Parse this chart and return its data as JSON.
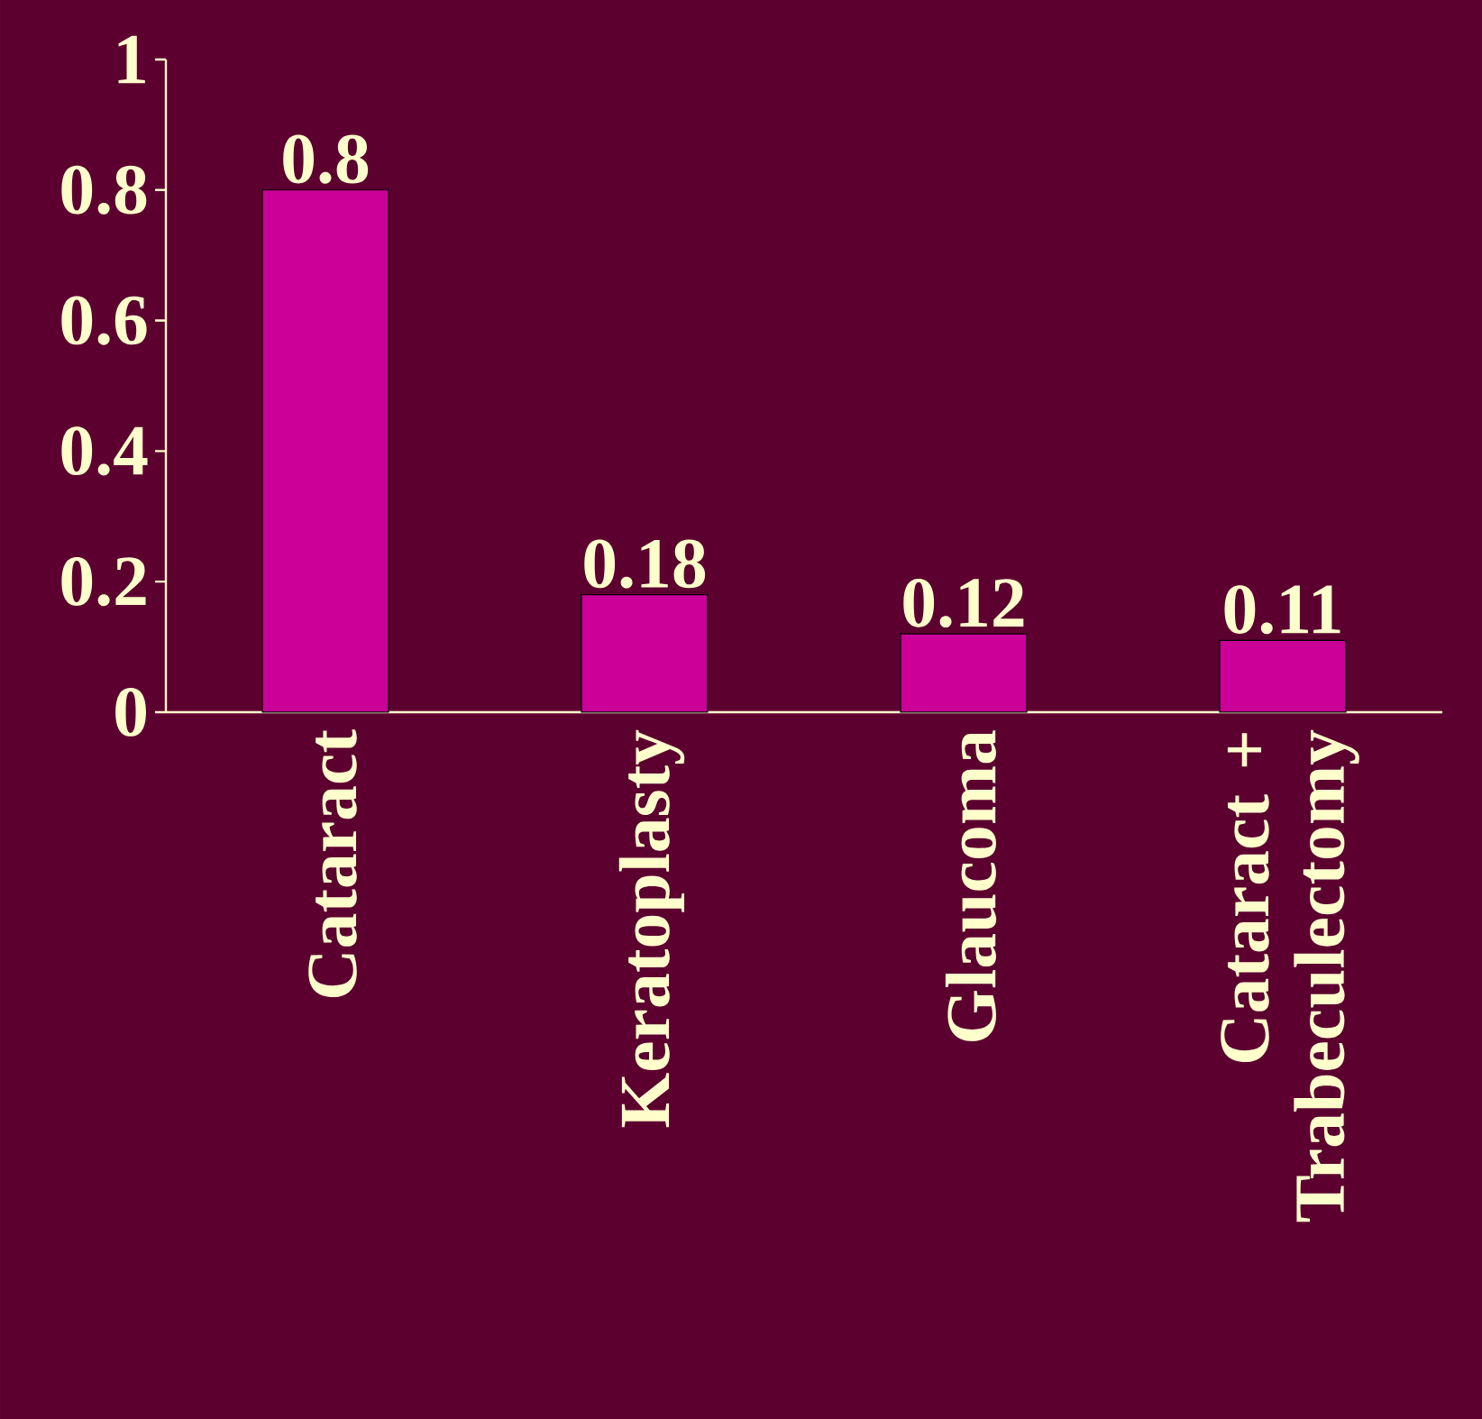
{
  "chart_data": {
    "type": "bar",
    "categories": [
      "Cataract",
      "Keratoplasty",
      "Glaucoma",
      "Cataract + Trabeculectomy"
    ],
    "values": [
      0.8,
      0.18,
      0.12,
      0.11
    ],
    "value_labels": [
      "0.8",
      "0.18",
      "0.12",
      "0.11"
    ],
    "color": "#cc0099",
    "ylim": [
      0,
      1
    ],
    "yticks": [
      0,
      0.2,
      0.4,
      0.6,
      0.8,
      1
    ]
  }
}
